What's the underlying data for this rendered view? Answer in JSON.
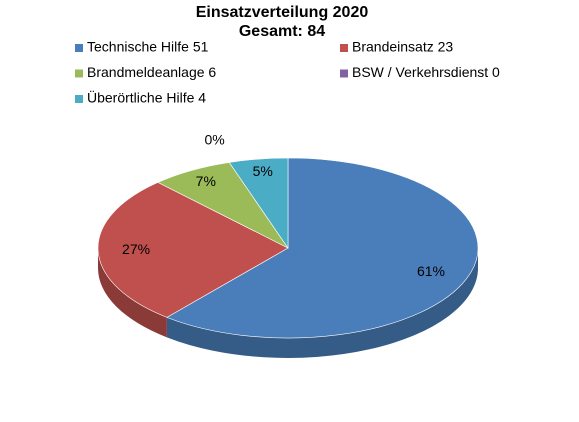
{
  "chart_data": {
    "type": "pie",
    "title": "Einsatzverteilung 2020",
    "subtitle": "Gesamt: 84",
    "categories": [
      "Technische Hilfe 51",
      "Brandeinsatz 23",
      "Brandmeldeanlage 6",
      "BSW / Verkehrsdienst 0",
      "Überörtliche Hilfe 4"
    ],
    "values": [
      61,
      27,
      7,
      0,
      5
    ],
    "value_labels": [
      "61%",
      "27%",
      "7%",
      "0%",
      "5%"
    ],
    "colors": [
      "#4a7ebb",
      "#c0504d",
      "#9bbb59",
      "#8064a2",
      "#4bacc6"
    ]
  }
}
